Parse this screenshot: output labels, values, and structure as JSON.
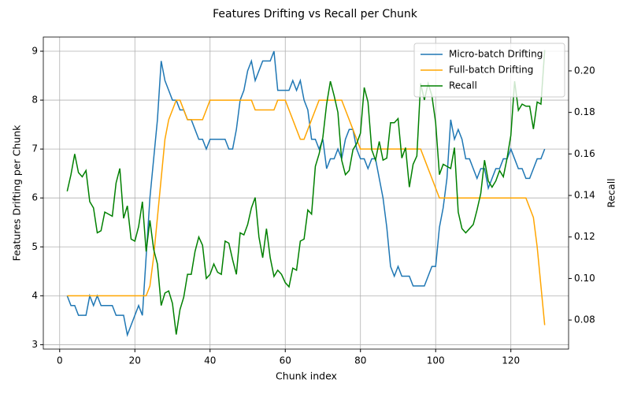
{
  "chart_data": {
    "type": "line",
    "title": "Features Drifting vs Recall per Chunk",
    "x_label": "Chunk index",
    "y_label": "Features Drifting per Chunk",
    "y2_label": "Recall",
    "x": [
      2,
      3,
      4,
      5,
      6,
      7,
      8,
      9,
      10,
      11,
      12,
      13,
      14,
      15,
      16,
      17,
      18,
      19,
      20,
      21,
      22,
      23,
      24,
      25,
      26,
      27,
      28,
      29,
      30,
      31,
      32,
      33,
      34,
      35,
      36,
      37,
      38,
      39,
      40,
      41,
      42,
      43,
      44,
      45,
      46,
      47,
      48,
      49,
      50,
      51,
      52,
      53,
      54,
      55,
      56,
      57,
      58,
      59,
      60,
      61,
      62,
      63,
      64,
      65,
      66,
      67,
      68,
      69,
      70,
      71,
      72,
      73,
      74,
      75,
      76,
      77,
      78,
      79,
      80,
      81,
      82,
      83,
      84,
      85,
      86,
      87,
      88,
      89,
      90,
      91,
      92,
      93,
      94,
      95,
      96,
      97,
      98,
      99,
      100,
      101,
      102,
      103,
      104,
      105,
      106,
      107,
      108,
      109,
      110,
      111,
      112,
      113,
      114,
      115,
      116,
      117,
      118,
      119,
      120,
      121,
      122,
      123,
      124,
      125,
      126,
      127,
      128,
      129
    ],
    "series": [
      {
        "name": "Micro-batch Drifting",
        "color": "#1f77b4",
        "values": [
          4.0,
          3.8,
          3.8,
          3.6,
          3.6,
          3.6,
          4.0,
          3.8,
          4.0,
          3.8,
          3.8,
          3.8,
          3.8,
          3.6,
          3.6,
          3.6,
          3.2,
          3.4,
          3.6,
          3.8,
          3.6,
          4.8,
          6.0,
          6.8,
          7.6,
          8.8,
          8.4,
          8.2,
          8.0,
          8.0,
          7.8,
          7.8,
          7.6,
          7.6,
          7.4,
          7.2,
          7.2,
          7.0,
          7.2,
          7.2,
          7.2,
          7.2,
          7.2,
          7.0,
          7.0,
          7.4,
          8.0,
          8.2,
          8.6,
          8.8,
          8.4,
          8.6,
          8.8,
          8.8,
          8.8,
          9.0,
          8.2,
          8.2,
          8.2,
          8.2,
          8.4,
          8.2,
          8.4,
          8.0,
          7.8,
          7.2,
          7.2,
          7.0,
          7.2,
          6.6,
          6.8,
          6.8,
          7.0,
          6.8,
          7.2,
          7.4,
          7.4,
          7.0,
          6.8,
          6.8,
          6.6,
          6.8,
          6.8,
          6.4,
          6.0,
          5.4,
          4.6,
          4.4,
          4.6,
          4.4,
          4.4,
          4.4,
          4.2,
          4.2,
          4.2,
          4.2,
          4.4,
          4.6,
          4.6,
          5.4,
          5.8,
          6.4,
          7.6,
          7.2,
          7.4,
          7.2,
          6.8,
          6.8,
          6.6,
          6.4,
          6.6,
          6.6,
          6.2,
          6.4,
          6.6,
          6.6,
          6.8,
          6.8,
          7.0,
          6.8,
          6.6,
          6.6,
          6.4,
          6.4,
          6.6,
          6.8,
          6.8,
          7.0
        ]
      },
      {
        "name": "Full-batch Drifting",
        "color": "#ffa500",
        "values": [
          4.0,
          4.0,
          4.0,
          4.0,
          4.0,
          4.0,
          4.0,
          4.0,
          4.0,
          4.0,
          4.0,
          4.0,
          4.0,
          4.0,
          4.0,
          4.0,
          4.0,
          4.0,
          4.0,
          4.0,
          4.0,
          4.0,
          4.2,
          4.8,
          5.6,
          6.4,
          7.2,
          7.6,
          7.8,
          8.0,
          8.0,
          7.8,
          7.6,
          7.6,
          7.6,
          7.6,
          7.6,
          7.8,
          8.0,
          8.0,
          8.0,
          8.0,
          8.0,
          8.0,
          8.0,
          8.0,
          8.0,
          8.0,
          8.0,
          8.0,
          7.8,
          7.8,
          7.8,
          7.8,
          7.8,
          7.8,
          8.0,
          8.0,
          8.0,
          7.8,
          7.6,
          7.4,
          7.2,
          7.2,
          7.4,
          7.6,
          7.8,
          8.0,
          8.0,
          8.0,
          8.0,
          8.0,
          8.0,
          8.0,
          7.8,
          7.6,
          7.4,
          7.2,
          7.0,
          7.0,
          7.0,
          7.0,
          7.0,
          7.0,
          7.0,
          7.0,
          7.0,
          7.0,
          7.0,
          7.0,
          7.0,
          7.0,
          7.0,
          7.0,
          7.0,
          6.8,
          6.6,
          6.4,
          6.2,
          6.0,
          6.0,
          6.0,
          6.0,
          6.0,
          6.0,
          6.0,
          6.0,
          6.0,
          6.0,
          6.0,
          6.0,
          6.0,
          6.0,
          6.0,
          6.0,
          6.0,
          6.0,
          6.0,
          6.0,
          6.0,
          6.0,
          6.0,
          6.0,
          5.8,
          5.6,
          5.0,
          4.2,
          3.4
        ]
      },
      {
        "name": "Recall",
        "color": "#008000",
        "axis": "y2",
        "values": [
          0.142,
          0.15,
          0.16,
          0.151,
          0.149,
          0.152,
          0.137,
          0.134,
          0.122,
          0.123,
          0.132,
          0.131,
          0.13,
          0.146,
          0.153,
          0.129,
          0.135,
          0.119,
          0.118,
          0.125,
          0.137,
          0.113,
          0.128,
          0.114,
          0.107,
          0.087,
          0.093,
          0.094,
          0.088,
          0.073,
          0.085,
          0.091,
          0.102,
          0.102,
          0.113,
          0.12,
          0.116,
          0.1,
          0.102,
          0.107,
          0.103,
          0.102,
          0.118,
          0.117,
          0.109,
          0.102,
          0.122,
          0.121,
          0.126,
          0.134,
          0.139,
          0.12,
          0.11,
          0.124,
          0.11,
          0.101,
          0.104,
          0.102,
          0.098,
          0.096,
          0.105,
          0.104,
          0.118,
          0.119,
          0.133,
          0.131,
          0.154,
          0.16,
          0.168,
          0.184,
          0.195,
          0.188,
          0.18,
          0.157,
          0.15,
          0.152,
          0.162,
          0.165,
          0.17,
          0.192,
          0.185,
          0.162,
          0.157,
          0.166,
          0.157,
          0.158,
          0.175,
          0.175,
          0.177,
          0.158,
          0.163,
          0.144,
          0.155,
          0.159,
          0.194,
          0.186,
          0.194,
          0.188,
          0.175,
          0.15,
          0.155,
          0.154,
          0.153,
          0.163,
          0.132,
          0.124,
          0.122,
          0.124,
          0.126,
          0.133,
          0.141,
          0.157,
          0.147,
          0.144,
          0.147,
          0.152,
          0.149,
          0.158,
          0.169,
          0.195,
          0.181,
          0.184,
          0.183,
          0.183,
          0.172,
          0.185,
          0.184,
          0.21
        ]
      }
    ],
    "xlim": [
      -4.35,
      135.35
    ],
    "xticks": [
      0,
      20,
      40,
      60,
      80,
      100,
      120
    ],
    "ylim": [
      2.91,
      9.29
    ],
    "yticks": [
      3,
      4,
      5,
      6,
      7,
      8,
      9
    ],
    "y2lim": [
      0.066,
      0.2163
    ],
    "y2ticks": [
      {
        "value": 0.08,
        "label": "0.08"
      },
      {
        "value": 0.1,
        "label": "0.10"
      },
      {
        "value": 0.12,
        "label": "0.12"
      },
      {
        "value": 0.14,
        "label": "0.14"
      },
      {
        "value": 0.16,
        "label": "0.16"
      },
      {
        "value": 0.18,
        "label": "0.18"
      },
      {
        "value": 0.2,
        "label": "0.20"
      }
    ],
    "grid": true,
    "legend": "upper right"
  }
}
